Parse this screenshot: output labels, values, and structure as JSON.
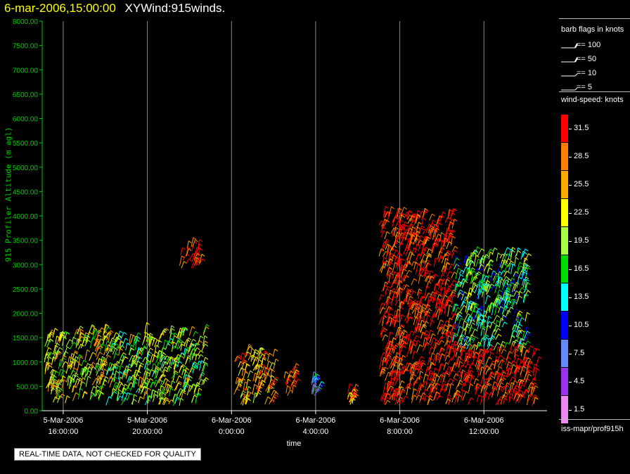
{
  "header": {
    "date": "6-mar-2006,15:00:00",
    "title": "XYWind:915winds."
  },
  "notice": "REAL-TIME DATA, NOT CHECKED FOR QUALITY",
  "legend": {
    "barb_title": "barb flags in knots",
    "barbs": [
      "== 100",
      "== 50",
      "== 10",
      "== 5"
    ],
    "speed_title": "wind-speed: knots",
    "scale": [
      {
        "label": "31.5",
        "color": "#ff0000"
      },
      {
        "label": "28.5",
        "color": "#ff7f00"
      },
      {
        "label": "25.5",
        "color": "#ffaa00"
      },
      {
        "label": "22.5",
        "color": "#ffff00"
      },
      {
        "label": "19.5",
        "color": "#aaff44"
      },
      {
        "label": "16.5",
        "color": "#00dd00"
      },
      {
        "label": "13.5",
        "color": "#00ffff"
      },
      {
        "label": "10.5",
        "color": "#0000ff"
      },
      {
        "label": "7.5",
        "color": "#6688ff"
      },
      {
        "label": "4.5",
        "color": "#9933ee"
      },
      {
        "label": "1.5",
        "color": "#ee88ee"
      }
    ],
    "source": "iss-mapr/prof915h"
  },
  "chart_data": {
    "type": "scatter",
    "title": "XYWind:915winds.",
    "xlabel": "time",
    "ylabel": "915 Profiler Altitude (m agl)",
    "ylim": [
      0,
      8000
    ],
    "yticks": [
      "0.00",
      "500.00",
      "1000.00",
      "1500.00",
      "2000.00",
      "2500.00",
      "3000.00",
      "3500.00",
      "4000.00",
      "4500.00",
      "5000.00",
      "5500.00",
      "6000.00",
      "6500.00",
      "7000.00",
      "7500.00",
      "8000.00"
    ],
    "xticks": [
      {
        "date": "5-Mar-2006",
        "time": "16:00:00"
      },
      {
        "date": "5-Mar-2006",
        "time": "20:00:00"
      },
      {
        "date": "6-Mar-2006",
        "time": "0:00:00"
      },
      {
        "date": "6-Mar-2006",
        "time": "4:00:00"
      },
      {
        "date": "6-Mar-2006",
        "time": "8:00:00"
      },
      {
        "date": "6-Mar-2006",
        "time": "12:00:00"
      }
    ],
    "xrange_hours": [
      15.0,
      39.0
    ],
    "grid": "vertical",
    "series": [
      {
        "hours": [
          15.1,
          16.5
        ],
        "alt": [
          100,
          1500
        ],
        "dominant_knots": 22.5
      },
      {
        "hours": [
          16.5,
          18.0
        ],
        "alt": [
          200,
          1600
        ],
        "dominant_knots": 22.5
      },
      {
        "hours": [
          18.0,
          19.7
        ],
        "alt": [
          100,
          1500
        ],
        "dominant_knots": 19.5
      },
      {
        "hours": [
          19.7,
          22.7
        ],
        "alt": [
          100,
          1600
        ],
        "dominant_knots": 19.5
      },
      {
        "hours": [
          21.5,
          22.6
        ],
        "alt": [
          2900,
          3400
        ],
        "dominant_knots": 31.5
      },
      {
        "hours": [
          24.1,
          26.0
        ],
        "alt": [
          100,
          1200
        ],
        "dominant_knots": 25.5
      },
      {
        "hours": [
          26.5,
          27.0
        ],
        "alt": [
          300,
          800
        ],
        "dominant_knots": 28.5
      },
      {
        "hours": [
          27.8,
          28.2
        ],
        "alt": [
          300,
          600
        ],
        "dominant_knots": 10.5
      },
      {
        "hours": [
          29.5,
          29.8
        ],
        "alt": [
          100,
          400
        ],
        "dominant_knots": 28.5
      },
      {
        "hours": [
          31.0,
          34.5
        ],
        "alt": [
          1000,
          4000
        ],
        "dominant_knots": 31.5
      },
      {
        "hours": [
          31.0,
          34.5
        ],
        "alt": [
          100,
          1000
        ],
        "dominant_knots": 31.5
      },
      {
        "hours": [
          34.5,
          38.0
        ],
        "alt": [
          1200,
          3200
        ],
        "dominant_knots": 16.5
      },
      {
        "hours": [
          34.5,
          38.5
        ],
        "alt": [
          100,
          1200
        ],
        "dominant_knots": 31.5
      }
    ]
  }
}
